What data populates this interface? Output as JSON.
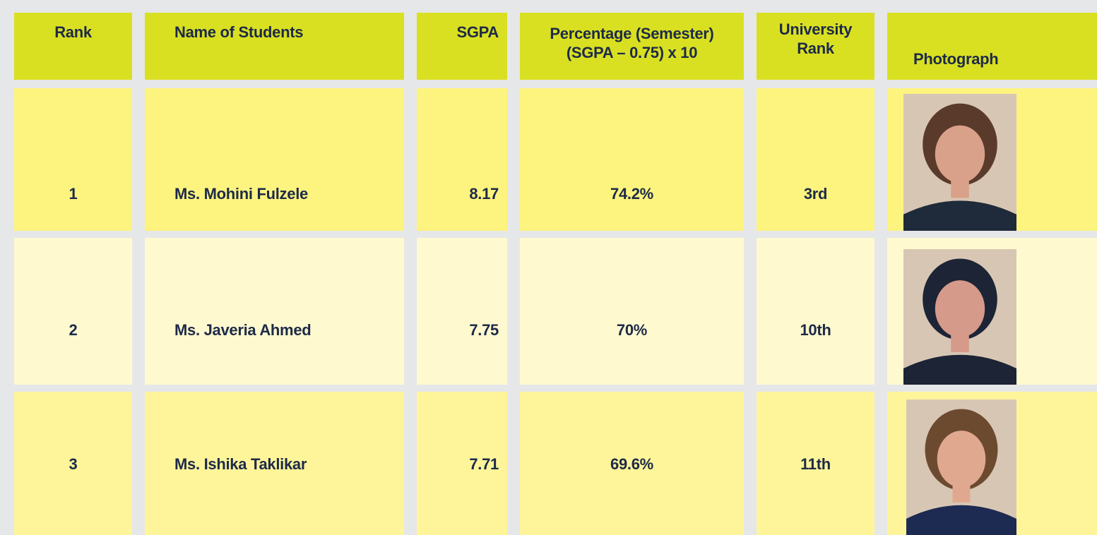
{
  "table": {
    "headers": [
      "Rank",
      "Name of Students",
      "SGPA",
      [
        "Percentage (Semester)",
        "(SGPA – 0.75) x 10"
      ],
      [
        "University",
        "Rank"
      ],
      "Photograph"
    ],
    "rows": [
      [
        "1",
        "Ms. Mohini Fulzele",
        "8.17",
        "74.2%",
        "3rd"
      ],
      [
        "2",
        "Ms. Javeria Ahmed",
        "7.75",
        "70%",
        "10th"
      ],
      [
        "3",
        "Ms. Ishika Taklikar",
        "7.71",
        "69.6%",
        "11th"
      ]
    ]
  }
}
